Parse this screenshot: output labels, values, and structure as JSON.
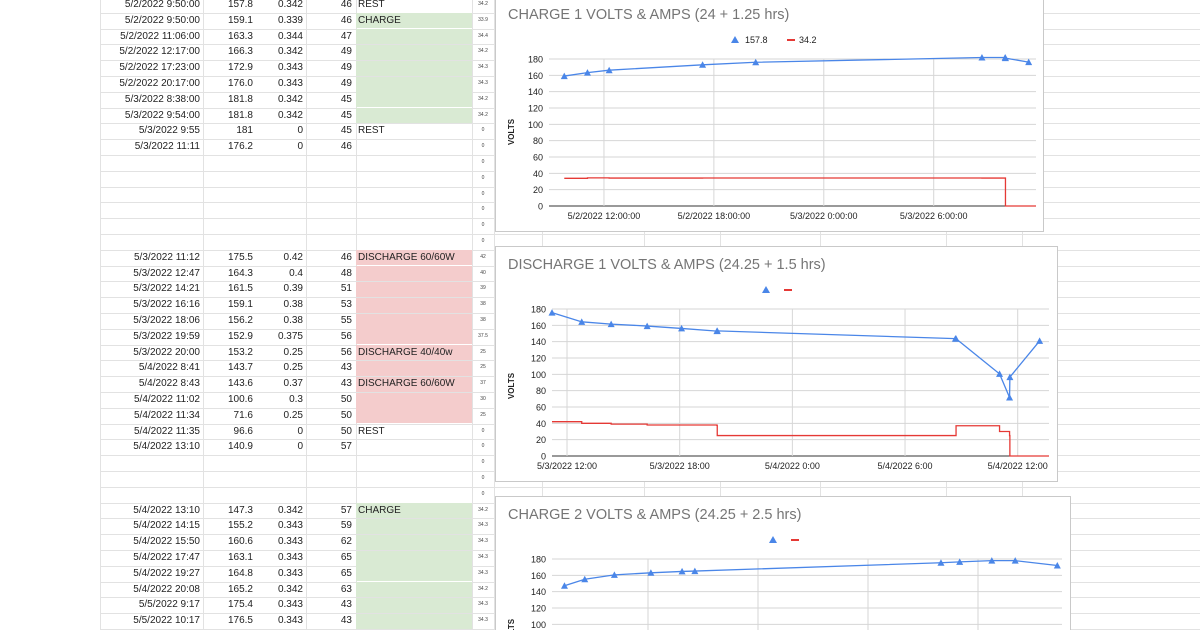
{
  "sheet": {
    "section1": [
      {
        "date": "5/2/2022 9:50:00",
        "volts": "157.8",
        "amps": "0.342",
        "temp": "46",
        "note": "REST",
        "small": "34.2",
        "fill": ""
      },
      {
        "date": "5/2/2022 9:50:00",
        "volts": "159.1",
        "amps": "0.339",
        "temp": "46",
        "note": "CHARGE",
        "small": "33.9",
        "fill": "green"
      },
      {
        "date": "5/2/2022 11:06:00",
        "volts": "163.3",
        "amps": "0.344",
        "temp": "47",
        "note": "",
        "small": "34.4",
        "fill": "green"
      },
      {
        "date": "5/2/2022 12:17:00",
        "volts": "166.3",
        "amps": "0.342",
        "temp": "49",
        "note": "",
        "small": "34.2",
        "fill": "green"
      },
      {
        "date": "5/2/2022 17:23:00",
        "volts": "172.9",
        "amps": "0.343",
        "temp": "49",
        "note": "",
        "small": "34.3",
        "fill": "green"
      },
      {
        "date": "5/2/2022 20:17:00",
        "volts": "176.0",
        "amps": "0.343",
        "temp": "49",
        "note": "",
        "small": "34.3",
        "fill": "green"
      },
      {
        "date": "5/3/2022 8:38:00",
        "volts": "181.8",
        "amps": "0.342",
        "temp": "45",
        "note": "",
        "small": "34.2",
        "fill": "green"
      },
      {
        "date": "5/3/2022 9:54:00",
        "volts": "181.8",
        "amps": "0.342",
        "temp": "45",
        "note": "",
        "small": "34.2",
        "fill": "green"
      },
      {
        "date": "5/3/2022 9:55",
        "volts": "181",
        "amps": "0",
        "temp": "45",
        "note": "REST",
        "small": "0",
        "fill": ""
      },
      {
        "date": "5/3/2022 11:11",
        "volts": "176.2",
        "amps": "0",
        "temp": "46",
        "note": "",
        "small": "0",
        "fill": ""
      }
    ],
    "gap1_small": [
      "0",
      "0",
      "0",
      "0",
      "0",
      "0"
    ],
    "section2": [
      {
        "date": "5/3/2022 11:12",
        "volts": "175.5",
        "amps": "0.42",
        "temp": "46",
        "note": "DISCHARGE 60/60W",
        "small": "42",
        "fill": "red"
      },
      {
        "date": "5/3/2022 12:47",
        "volts": "164.3",
        "amps": "0.4",
        "temp": "48",
        "note": "",
        "small": "40",
        "fill": "red"
      },
      {
        "date": "5/3/2022 14:21",
        "volts": "161.5",
        "amps": "0.39",
        "temp": "51",
        "note": "",
        "small": "39",
        "fill": "red"
      },
      {
        "date": "5/3/2022 16:16",
        "volts": "159.1",
        "amps": "0.38",
        "temp": "53",
        "note": "",
        "small": "38",
        "fill": "red"
      },
      {
        "date": "5/3/2022 18:06",
        "volts": "156.2",
        "amps": "0.38",
        "temp": "55",
        "note": "",
        "small": "38",
        "fill": "red"
      },
      {
        "date": "5/3/2022 19:59",
        "volts": "152.9",
        "amps": "0.375",
        "temp": "56",
        "note": "",
        "small": "37.5",
        "fill": "red"
      },
      {
        "date": "5/3/2022 20:00",
        "volts": "153.2",
        "amps": "0.25",
        "temp": "56",
        "note": "DISCHARGE 40/40w",
        "small": "25",
        "fill": "red"
      },
      {
        "date": "5/4/2022 8:41",
        "volts": "143.7",
        "amps": "0.25",
        "temp": "43",
        "note": "",
        "small": "25",
        "fill": "red"
      },
      {
        "date": "5/4/2022 8:43",
        "volts": "143.6",
        "amps": "0.37",
        "temp": "43",
        "note": "DISCHARGE 60/60W",
        "small": "37",
        "fill": "red"
      },
      {
        "date": "5/4/2022 11:02",
        "volts": "100.6",
        "amps": "0.3",
        "temp": "50",
        "note": "",
        "small": "30",
        "fill": "red"
      },
      {
        "date": "5/4/2022 11:34",
        "volts": "71.6",
        "amps": "0.25",
        "temp": "50",
        "note": "",
        "small": "25",
        "fill": "red"
      },
      {
        "date": "5/4/2022 11:35",
        "volts": "96.6",
        "amps": "0",
        "temp": "50",
        "note": "REST",
        "small": "0",
        "fill": ""
      },
      {
        "date": "5/4/2022 13:10",
        "volts": "140.9",
        "amps": "0",
        "temp": "57",
        "note": "",
        "small": "0",
        "fill": ""
      }
    ],
    "gap2_small": [
      "0",
      "0",
      "0"
    ],
    "section3": [
      {
        "date": "5/4/2022 13:10",
        "volts": "147.3",
        "amps": "0.342",
        "temp": "57",
        "note": "CHARGE",
        "small": "34.2",
        "fill": "green"
      },
      {
        "date": "5/4/2022 14:15",
        "volts": "155.2",
        "amps": "0.343",
        "temp": "59",
        "note": "",
        "small": "34.3",
        "fill": "green"
      },
      {
        "date": "5/4/2022 15:50",
        "volts": "160.6",
        "amps": "0.343",
        "temp": "62",
        "note": "",
        "small": "34.3",
        "fill": "green"
      },
      {
        "date": "5/4/2022 17:47",
        "volts": "163.1",
        "amps": "0.343",
        "temp": "65",
        "note": "",
        "small": "34.3",
        "fill": "green"
      },
      {
        "date": "5/4/2022 19:27",
        "volts": "164.8",
        "amps": "0.343",
        "temp": "65",
        "note": "",
        "small": "34.3",
        "fill": "green"
      },
      {
        "date": "5/4/2022 20:08",
        "volts": "165.2",
        "amps": "0.342",
        "temp": "63",
        "note": "",
        "small": "34.2",
        "fill": "green"
      },
      {
        "date": "5/5/2022 9:17",
        "volts": "175.4",
        "amps": "0.343",
        "temp": "43",
        "note": "",
        "small": "34.3",
        "fill": "green"
      },
      {
        "date": "5/5/2022 10:17",
        "volts": "176.5",
        "amps": "0.343",
        "temp": "43",
        "note": "",
        "small": "34.3",
        "fill": "green"
      }
    ]
  },
  "colors": {
    "green_fill": "#d9ead3",
    "red_fill": "#f4cccc",
    "volts_series": "#4a86e8",
    "amps_series": "#e53935"
  },
  "chart_data": [
    {
      "type": "line",
      "title": "CHARGE 1 VOLTS & AMPS (24 + 1.25 hrs)",
      "ylabel": "VOLTS",
      "ylim": [
        0,
        180
      ],
      "yticks": [
        0,
        20,
        40,
        60,
        80,
        100,
        120,
        140,
        160,
        180
      ],
      "xlim": [
        "5/2/2022 9:00",
        "5/3/2022 11:35"
      ],
      "xticks": [
        {
          "label": "5/2/2022 12:00:00",
          "at": "5/2/2022 12:00"
        },
        {
          "label": "5/2/2022 18:00:00",
          "at": "5/2/2022 18:00"
        },
        {
          "label": "5/3/2022 0:00:00",
          "at": "5/3/2022 0:00"
        },
        {
          "label": "5/3/2022 6:00:00",
          "at": "5/3/2022 6:00"
        }
      ],
      "legend": "top",
      "grid": true,
      "series": [
        {
          "name": "157.8",
          "marker": "triangle",
          "points": [
            [
              "5/2/2022 9:50",
              159.1
            ],
            [
              "5/2/2022 11:06",
              163.3
            ],
            [
              "5/2/2022 12:17",
              166.3
            ],
            [
              "5/2/2022 17:23",
              172.9
            ],
            [
              "5/2/2022 20:17",
              176.0
            ],
            [
              "5/3/2022 8:38",
              181.8
            ],
            [
              "5/3/2022 9:54",
              181.8
            ],
            [
              "5/3/2022 9:55",
              181
            ],
            [
              "5/3/2022 11:11",
              176.2
            ]
          ]
        },
        {
          "name": "34.2",
          "marker": "none",
          "points": [
            [
              "5/2/2022 9:50",
              33.9
            ],
            [
              "5/2/2022 11:06",
              34.4
            ],
            [
              "5/2/2022 12:17",
              34.2
            ],
            [
              "5/2/2022 17:23",
              34.3
            ],
            [
              "5/2/2022 20:17",
              34.3
            ],
            [
              "5/3/2022 8:38",
              34.2
            ],
            [
              "5/3/2022 9:54",
              34.2
            ],
            [
              "5/3/2022 9:55",
              0
            ],
            [
              "5/3/2022 11:11",
              0
            ]
          ]
        }
      ]
    },
    {
      "type": "line",
      "title": "DISCHARGE 1 VOLTS & AMPS (24.25 + 1.5 hrs)",
      "ylabel": "VOLTS",
      "ylim": [
        0,
        180
      ],
      "yticks": [
        0,
        20,
        40,
        60,
        80,
        100,
        120,
        140,
        160,
        180
      ],
      "xlim": [
        "5/3/2022 11:12",
        "5/4/2022 13:40"
      ],
      "xticks": [
        {
          "label": "5/3/2022 12:00",
          "at": "5/3/2022 12:00"
        },
        {
          "label": "5/3/2022 18:00",
          "at": "5/3/2022 18:00"
        },
        {
          "label": "5/4/2022 0:00",
          "at": "5/4/2022 0:00"
        },
        {
          "label": "5/4/2022 6:00",
          "at": "5/4/2022 6:00"
        },
        {
          "label": "5/4/2022 12:00",
          "at": "5/4/2022 12:00"
        }
      ],
      "legend": "top",
      "grid": true,
      "series": [
        {
          "name": "",
          "marker": "triangle",
          "points": [
            [
              "5/3/2022 11:12",
              175.5
            ],
            [
              "5/3/2022 12:47",
              164.3
            ],
            [
              "5/3/2022 14:21",
              161.5
            ],
            [
              "5/3/2022 16:16",
              159.1
            ],
            [
              "5/3/2022 18:06",
              156.2
            ],
            [
              "5/3/2022 19:59",
              152.9
            ],
            [
              "5/3/2022 20:00",
              153.2
            ],
            [
              "5/4/2022 8:41",
              143.7
            ],
            [
              "5/4/2022 8:43",
              143.6
            ],
            [
              "5/4/2022 11:02",
              100.6
            ],
            [
              "5/4/2022 11:34",
              71.6
            ],
            [
              "5/4/2022 11:35",
              96.6
            ],
            [
              "5/4/2022 13:10",
              140.9
            ]
          ]
        },
        {
          "name": "",
          "marker": "none",
          "points": [
            [
              "5/3/2022 11:12",
              42
            ],
            [
              "5/3/2022 12:47",
              40
            ],
            [
              "5/3/2022 14:21",
              39
            ],
            [
              "5/3/2022 16:16",
              38
            ],
            [
              "5/3/2022 18:06",
              38
            ],
            [
              "5/3/2022 19:59",
              37.5
            ],
            [
              "5/3/2022 20:00",
              25
            ],
            [
              "5/4/2022 8:41",
              25
            ],
            [
              "5/4/2022 8:43",
              37
            ],
            [
              "5/4/2022 11:02",
              30
            ],
            [
              "5/4/2022 11:34",
              25
            ],
            [
              "5/4/2022 11:35",
              0
            ],
            [
              "5/4/2022 13:10",
              0
            ]
          ]
        }
      ]
    },
    {
      "type": "line",
      "title": "CHARGE 2 VOLTS & AMPS (24.25 + 2.5 hrs)",
      "ylabel": "VOLTS",
      "ylim": [
        0,
        180
      ],
      "yticks": [
        100,
        120,
        140,
        160,
        180
      ],
      "xlim": [
        "5/4/2022 12:30",
        "5/5/2022 15:45"
      ],
      "xticks": [],
      "legend": "top",
      "grid": true,
      "series": [
        {
          "name": "",
          "marker": "triangle",
          "points": [
            [
              "5/4/2022 13:10",
              147.3
            ],
            [
              "5/4/2022 14:15",
              155.2
            ],
            [
              "5/4/2022 15:50",
              160.6
            ],
            [
              "5/4/2022 17:47",
              163.1
            ],
            [
              "5/4/2022 19:27",
              164.8
            ],
            [
              "5/4/2022 20:08",
              165.2
            ],
            [
              "5/5/2022 9:17",
              175.4
            ],
            [
              "5/5/2022 10:17",
              176.5
            ],
            [
              "5/5/2022 12:00",
              178
            ],
            [
              "5/5/2022 13:15",
              178
            ],
            [
              "5/5/2022 15:30",
              172
            ]
          ]
        },
        {
          "name": "",
          "marker": "none",
          "points": []
        }
      ]
    }
  ]
}
